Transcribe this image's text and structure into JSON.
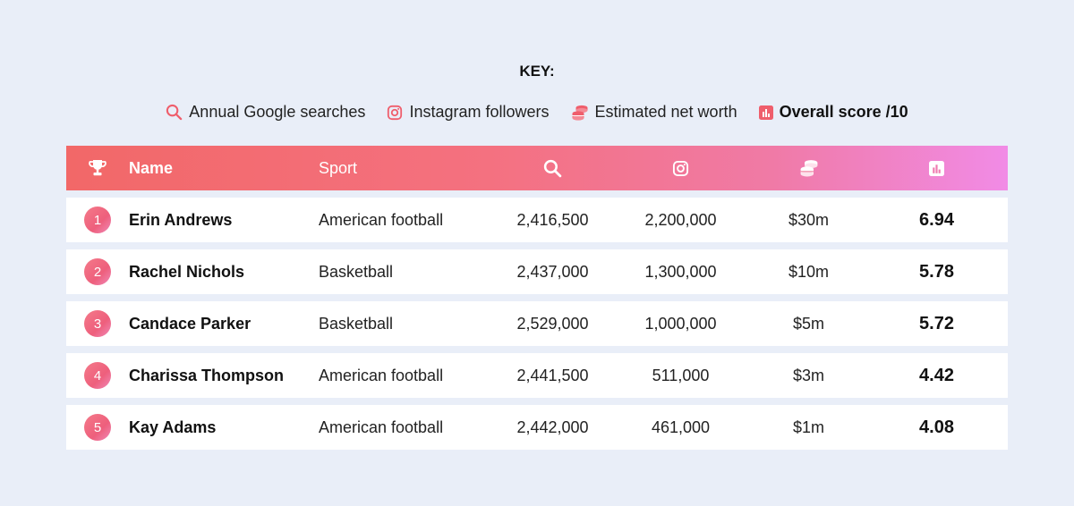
{
  "key": {
    "title": "KEY:",
    "items": [
      {
        "icon": "search-icon",
        "label": "Annual Google searches"
      },
      {
        "icon": "instagram-icon",
        "label": "Instagram followers"
      },
      {
        "icon": "coins-icon",
        "label": "Estimated net worth"
      },
      {
        "icon": "bar-chart-icon",
        "label": "Overall score /10"
      }
    ]
  },
  "colors": {
    "background": "#e9eef8",
    "accent_red": "#f26868",
    "accent_pink": "#f18be6"
  },
  "table": {
    "headers": {
      "rank_icon": "trophy-icon",
      "name": "Name",
      "sport": "Sport",
      "searches_icon": "search-icon",
      "instagram_icon": "instagram-icon",
      "worth_icon": "coins-icon",
      "score_icon": "bar-chart-icon"
    },
    "rows": [
      {
        "rank": "1",
        "name": "Erin Andrews",
        "sport": "American football",
        "searches": "2,416,500",
        "instagram": "2,200,000",
        "worth": "$30m",
        "score": "6.94"
      },
      {
        "rank": "2",
        "name": "Rachel Nichols",
        "sport": "Basketball",
        "searches": "2,437,000",
        "instagram": "1,300,000",
        "worth": "$10m",
        "score": "5.78"
      },
      {
        "rank": "3",
        "name": "Candace Parker",
        "sport": "Basketball",
        "searches": "2,529,000",
        "instagram": "1,000,000",
        "worth": "$5m",
        "score": "5.72"
      },
      {
        "rank": "4",
        "name": "Charissa Thompson",
        "sport": "American football",
        "searches": "2,441,500",
        "instagram": "511,000",
        "worth": "$3m",
        "score": "4.42"
      },
      {
        "rank": "5",
        "name": "Kay Adams",
        "sport": "American football",
        "searches": "2,442,000",
        "instagram": "461,000",
        "worth": "$1m",
        "score": "4.08"
      }
    ]
  }
}
